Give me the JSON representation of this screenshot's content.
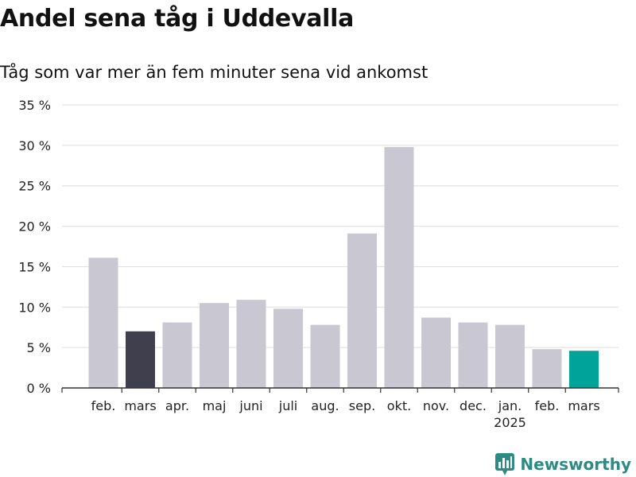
{
  "header": {
    "title": "Andel sena tåg i Uddevalla",
    "subtitle": "Tåg som var mer än fem minuter sena vid ankomst"
  },
  "brand": {
    "name": "Newsworthy",
    "icon": "newsworthy-logo-icon"
  },
  "colors": {
    "bar_default": "#c9c8d2",
    "bar_highlight_dark": "#3f3f4e",
    "bar_highlight_accent": "#00a398",
    "grid": "#dddddd",
    "brand": "#2e8b84"
  },
  "chart_data": {
    "type": "bar",
    "categories": [
      "feb.",
      "mars",
      "apr.",
      "maj",
      "juni",
      "juli",
      "aug.",
      "sep.",
      "okt.",
      "nov.",
      "dec.",
      "jan.",
      "feb.",
      "mars"
    ],
    "year_labels": [
      "",
      "",
      "",
      "",
      "",
      "",
      "",
      "",
      "",
      "",
      "",
      "2025",
      "",
      ""
    ],
    "values": [
      16.1,
      7.0,
      8.1,
      10.5,
      10.9,
      9.8,
      7.8,
      19.1,
      29.8,
      8.7,
      8.1,
      7.8,
      4.8,
      4.6
    ],
    "bar_colors": [
      "#c9c8d2",
      "#3f3f4e",
      "#c9c8d2",
      "#c9c8d2",
      "#c9c8d2",
      "#c9c8d2",
      "#c9c8d2",
      "#c9c8d2",
      "#c9c8d2",
      "#c9c8d2",
      "#c9c8d2",
      "#c9c8d2",
      "#c9c8d2",
      "#00a398"
    ],
    "ylim": [
      0,
      35
    ],
    "yticks": [
      0,
      5,
      10,
      15,
      20,
      25,
      30,
      35
    ],
    "ytick_labels": [
      "0 %",
      "5 %",
      "10 %",
      "15 %",
      "20 %",
      "25 %",
      "30 %",
      "35 %"
    ],
    "grid": true,
    "xlabel": "",
    "ylabel": ""
  }
}
